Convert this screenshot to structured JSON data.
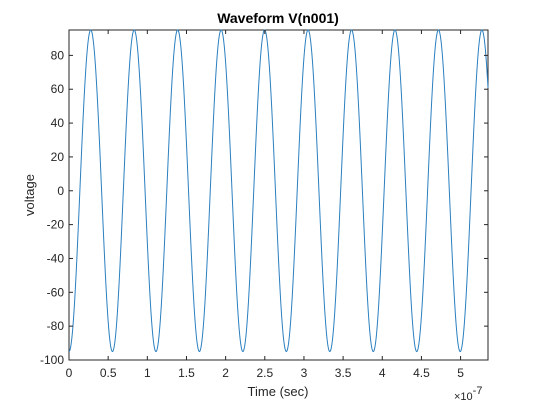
{
  "chart_data": {
    "type": "line",
    "title": "Waveform V(n001)",
    "xlabel": "Time (sec)",
    "ylabel": "voltage",
    "x_exponent_base": "×10",
    "x_exponent_power": "-7",
    "xlim": [
      0,
      5.35
    ],
    "ylim": [
      -100,
      95
    ],
    "xticks": [
      "0",
      "0.5",
      "1",
      "1.5",
      "2",
      "2.5",
      "3",
      "3.5",
      "4",
      "4.5",
      "5"
    ],
    "xtick_values": [
      0,
      0.5,
      1,
      1.5,
      2,
      2.5,
      3,
      3.5,
      4,
      4.5,
      5
    ],
    "yticks": [
      "-100",
      "-80",
      "-60",
      "-40",
      "-20",
      "0",
      "20",
      "40",
      "60",
      "80"
    ],
    "ytick_values": [
      -100,
      -80,
      -60,
      -40,
      -20,
      0,
      20,
      40,
      60,
      80
    ],
    "grid": false,
    "line_color": "#2a7fbf",
    "series": [
      {
        "waveform": "sine",
        "amplitude": 95,
        "period": 0.555,
        "phase_start": "trough",
        "x_start": 0,
        "x_end": 5.35
      }
    ]
  }
}
